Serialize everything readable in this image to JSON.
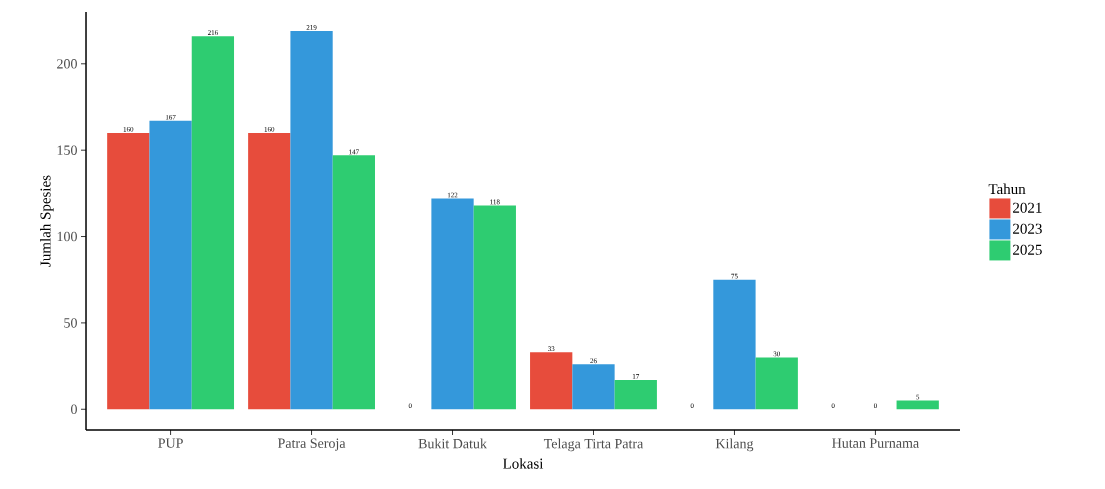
{
  "chart_data": {
    "type": "bar",
    "xlabel": "Lokasi",
    "ylabel": "Jumlah Spesies",
    "legend_title": "Tahun",
    "categories": [
      "PUP",
      "Patra Seroja",
      "Bukit Datuk",
      "Telaga Tirta Patra",
      "Kilang",
      "Hutan Purnama"
    ],
    "series": [
      {
        "name": "2021",
        "color": "#e74c3c",
        "values": [
          160,
          160,
          0,
          33,
          0,
          0
        ],
        "value_labels": [
          "160",
          "160",
          null,
          "33",
          null,
          null
        ]
      },
      {
        "name": "2023",
        "color": "#3498db",
        "values": [
          167,
          219,
          122,
          26,
          75,
          0
        ],
        "value_labels": [
          "167",
          "219",
          "122",
          "26",
          "75",
          null
        ]
      },
      {
        "name": "2025",
        "color": "#2ecc71",
        "values": [
          216,
          147,
          118,
          17,
          30,
          5
        ],
        "value_labels": [
          "216",
          "147",
          "118",
          "17",
          "30",
          "5"
        ]
      }
    ],
    "annotations": [
      "0",
      "0",
      "0",
      "0"
    ],
    "ylim": [
      -12,
      230
    ],
    "yticks": [
      0,
      50,
      100,
      150,
      200
    ],
    "grid": false,
    "legend": "right"
  }
}
